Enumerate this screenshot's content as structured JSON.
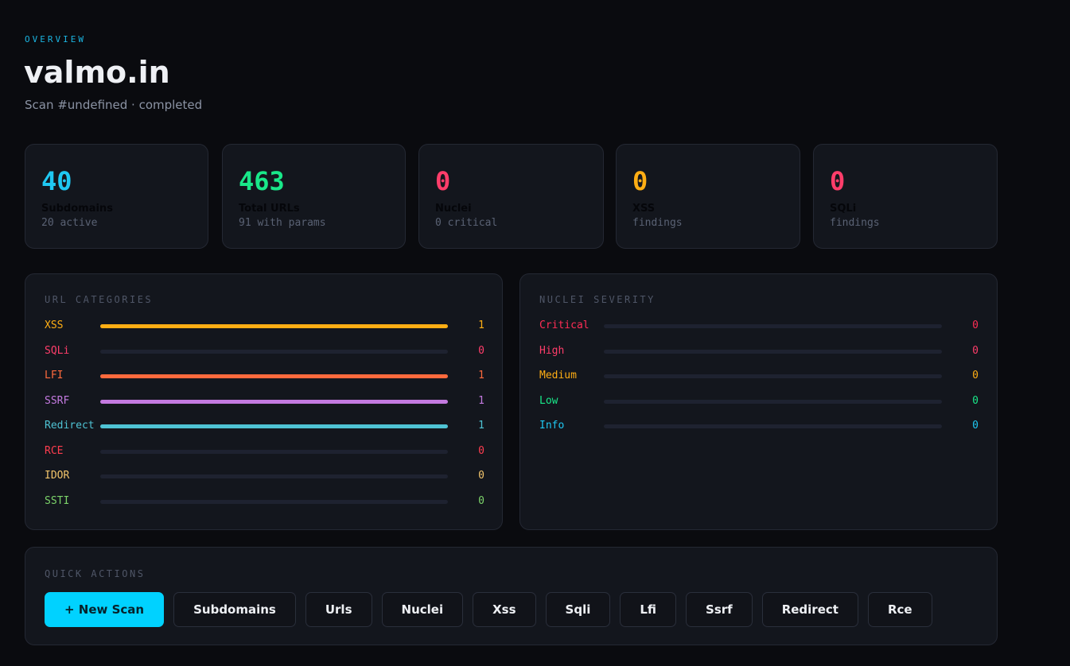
{
  "header": {
    "eyebrow": "OVERVIEW",
    "title": "valmo.in",
    "subtitle": "Scan #undefined · completed"
  },
  "stats": [
    {
      "value": "40",
      "label": "Subdomains",
      "sub": "20 active",
      "color": "#1fc8f2"
    },
    {
      "value": "463",
      "label": "Total URLs",
      "sub": "91 with params",
      "color": "#19e889"
    },
    {
      "value": "0",
      "label": "Nuclei",
      "sub": "0 critical",
      "color": "#ff3d6a"
    },
    {
      "value": "0",
      "label": "XSS",
      "sub": "findings",
      "color": "#ffae14"
    },
    {
      "value": "0",
      "label": "SQLi",
      "sub": "findings",
      "color": "#ff3d6a"
    }
  ],
  "url_categories": {
    "title": "URL CATEGORIES",
    "items": [
      {
        "label": "XSS",
        "count": "1",
        "fill": 1,
        "color": "#ffae14"
      },
      {
        "label": "SQLi",
        "count": "0",
        "fill": 0,
        "color": "#ff3d6a"
      },
      {
        "label": "LFI",
        "count": "1",
        "fill": 1,
        "color": "#ff6a3d"
      },
      {
        "label": "SSRF",
        "count": "1",
        "fill": 1,
        "color": "#c47ae0"
      },
      {
        "label": "Redirect",
        "count": "1",
        "fill": 1,
        "color": "#4fc3d4"
      },
      {
        "label": "RCE",
        "count": "0",
        "fill": 0,
        "color": "#ff3d4f"
      },
      {
        "label": "IDOR",
        "count": "0",
        "fill": 0,
        "color": "#f2c46b"
      },
      {
        "label": "SSTI",
        "count": "0",
        "fill": 0,
        "color": "#7cd36a"
      }
    ]
  },
  "nuclei_severity": {
    "title": "NUCLEI SEVERITY",
    "items": [
      {
        "label": "Critical",
        "count": "0",
        "fill": 0,
        "color": "#ff2d55"
      },
      {
        "label": "High",
        "count": "0",
        "fill": 0,
        "color": "#ff3d6a"
      },
      {
        "label": "Medium",
        "count": "0",
        "fill": 0,
        "color": "#ffae14"
      },
      {
        "label": "Low",
        "count": "0",
        "fill": 0,
        "color": "#19e889"
      },
      {
        "label": "Info",
        "count": "0",
        "fill": 0,
        "color": "#1fc8f2"
      }
    ]
  },
  "quick_actions": {
    "title": "QUICK ACTIONS",
    "buttons": [
      "+ New Scan",
      "Subdomains",
      "Urls",
      "Nuclei",
      "Xss",
      "Sqli",
      "Lfi",
      "Ssrf",
      "Redirect",
      "Rce"
    ]
  }
}
